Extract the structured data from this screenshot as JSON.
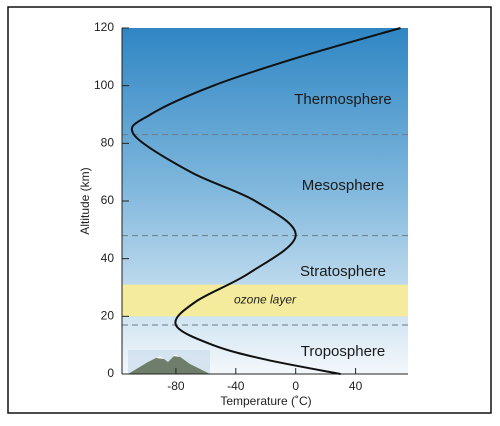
{
  "chart_data": {
    "type": "line",
    "x_label": "Temperature (˚C)",
    "y_label": "Altitude (km)",
    "xlim": [
      -116,
      75
    ],
    "ylim": [
      0,
      120
    ],
    "xticks": [
      -80,
      -40,
      0,
      40
    ],
    "yticks": [
      0,
      20,
      40,
      60,
      80,
      100,
      120
    ],
    "series": [
      {
        "color": "#111111",
        "x": [
          30,
          -20,
          -55,
          -80,
          -67,
          -31,
          0,
          -27,
          -70,
          -108,
          -97,
          -55,
          3,
          70
        ],
        "y": [
          0,
          5,
          10,
          17,
          25,
          35,
          48,
          60,
          70,
          83,
          90,
          100,
          110,
          120
        ]
      }
    ],
    "boundaries": [
      17,
      48,
      83
    ],
    "layers": [
      {
        "name": "Thermosphere"
      },
      {
        "name": "Mesosphere"
      },
      {
        "name": "Stratosphere"
      },
      {
        "name": "Troposphere"
      }
    ],
    "ozone_layer": {
      "label": "ozone layer",
      "range": [
        20,
        31
      ],
      "color": "#f4ec9c"
    }
  }
}
